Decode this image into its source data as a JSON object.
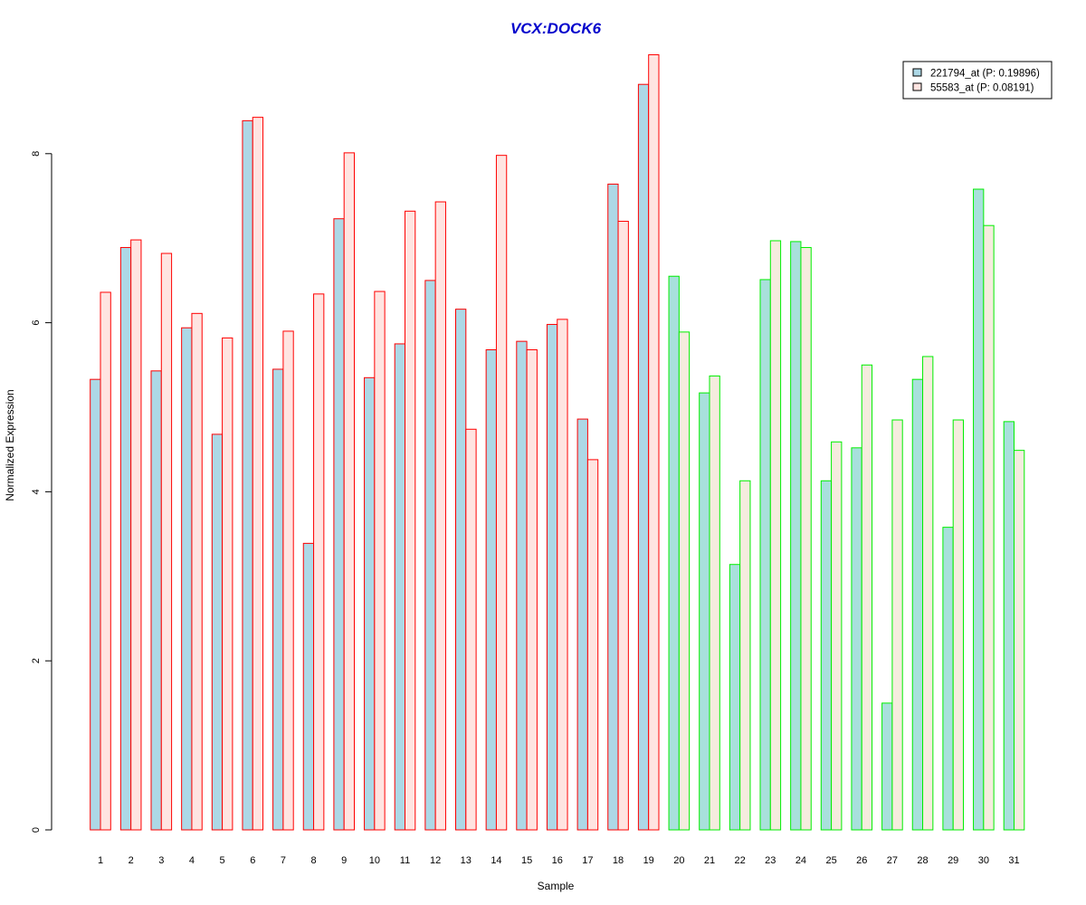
{
  "chart_data": {
    "type": "bar",
    "title": "VCX:DOCK6",
    "xlabel": "Sample",
    "ylabel": "Normalized Expression",
    "ylim": [
      0,
      9.2
    ],
    "yticks": [
      0,
      2,
      4,
      6,
      8
    ],
    "categories": [
      "1",
      "2",
      "3",
      "4",
      "5",
      "6",
      "7",
      "8",
      "9",
      "10",
      "11",
      "12",
      "13",
      "14",
      "15",
      "16",
      "17",
      "18",
      "19",
      "20",
      "21",
      "22",
      "23",
      "24",
      "25",
      "26",
      "27",
      "28",
      "29",
      "30",
      "31"
    ],
    "series": [
      {
        "name": "221794_at (P: 0.19896)",
        "values": [
          5.33,
          6.89,
          5.43,
          5.94,
          4.68,
          8.39,
          5.45,
          3.39,
          7.23,
          5.35,
          5.75,
          6.5,
          6.16,
          5.68,
          5.78,
          5.98,
          4.86,
          7.64,
          8.82,
          6.55,
          5.17,
          3.14,
          6.51,
          6.96,
          4.13,
          4.52,
          1.5,
          5.33,
          3.58,
          7.58,
          4.83
        ]
      },
      {
        "name": "55583_at (P: 0.08191)",
        "values": [
          6.36,
          6.98,
          6.82,
          6.11,
          5.82,
          8.43,
          5.9,
          6.34,
          8.01,
          6.37,
          7.32,
          7.43,
          4.74,
          7.98,
          5.68,
          6.04,
          4.38,
          7.2,
          9.17,
          5.89,
          5.37,
          4.13,
          6.97,
          6.89,
          4.59,
          5.5,
          4.85,
          5.6,
          4.85,
          7.15,
          4.49
        ]
      }
    ],
    "groups": [
      {
        "samples": [
          1,
          19
        ],
        "border_color": "#ff0000",
        "fills": [
          "#add8e6",
          "#ffe4e1"
        ]
      },
      {
        "samples": [
          20,
          31
        ],
        "border_color": "#00ee00",
        "fills": [
          "#a8e0dc",
          "#f5ecde"
        ]
      }
    ],
    "legend_swatch_border": "#000000",
    "legend_position": "top-right",
    "grid": false
  }
}
